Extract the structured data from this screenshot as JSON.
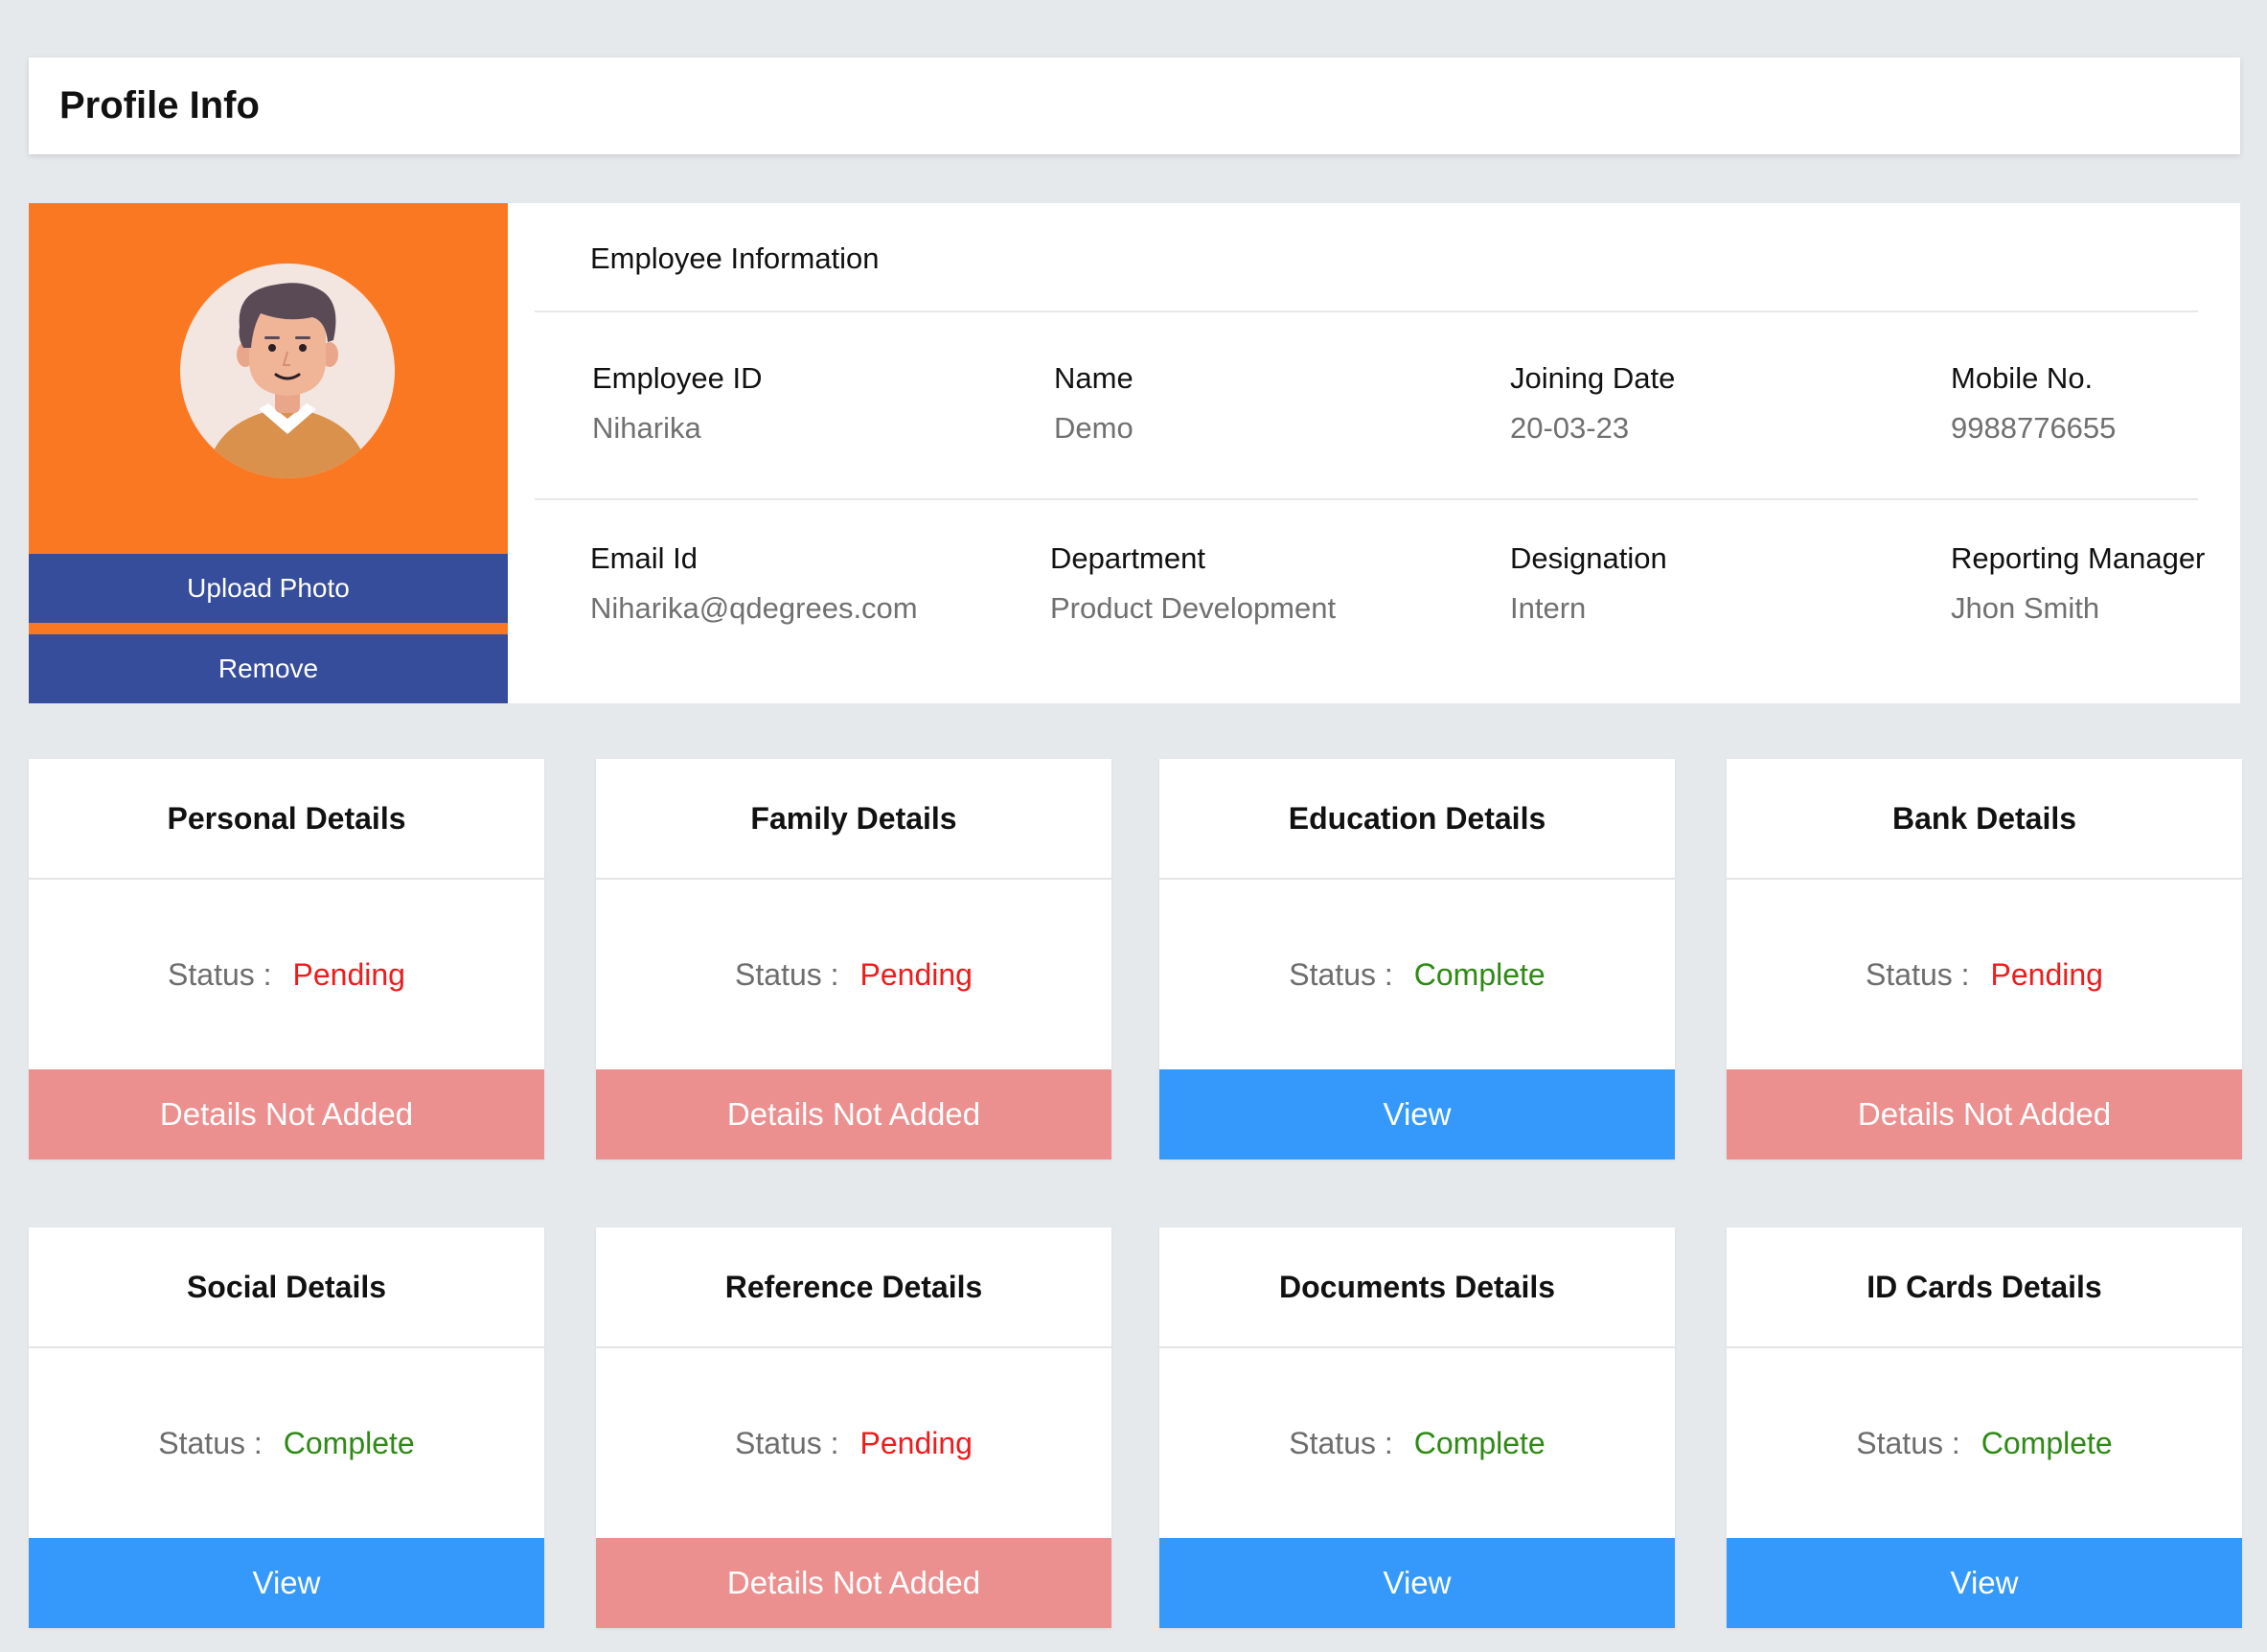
{
  "header": {
    "title": "Profile Info"
  },
  "profile": {
    "upload_label": "Upload Photo",
    "remove_label": "Remove",
    "colors": {
      "photo_bg": "#fb7823",
      "button_bg": "#364d9c"
    }
  },
  "employee": {
    "section_title": "Employee Information",
    "fields": [
      {
        "label": "Employee ID",
        "value": "Niharika"
      },
      {
        "label": "Name",
        "value": "Demo"
      },
      {
        "label": "Joining Date",
        "value": "20-03-23"
      },
      {
        "label": "Mobile No.",
        "value": "9988776655"
      },
      {
        "label": "Email Id",
        "value": "Niharika@qdegrees.com"
      },
      {
        "label": "Department",
        "value": "Product Development"
      },
      {
        "label": "Designation",
        "value": "Intern"
      },
      {
        "label": "Reporting Manager",
        "value": "Jhon Smith"
      }
    ]
  },
  "status_label": "Status :",
  "colors": {
    "pending": "#ee1c1c",
    "complete": "#2e8a15",
    "not_added_bg": "#ec8f8f",
    "view_bg": "#3499fb"
  },
  "cards": [
    {
      "title": "Personal Details",
      "status": "Pending",
      "action": "Details Not Added"
    },
    {
      "title": "Family Details",
      "status": "Pending",
      "action": "Details Not Added"
    },
    {
      "title": "Education Details",
      "status": "Complete",
      "action": "View"
    },
    {
      "title": "Bank Details",
      "status": "Pending",
      "action": "Details Not Added"
    },
    {
      "title": "Social Details",
      "status": "Complete",
      "action": "View"
    },
    {
      "title": "Reference Details",
      "status": "Pending",
      "action": "Details Not Added"
    },
    {
      "title": "Documents Details",
      "status": "Complete",
      "action": "View"
    },
    {
      "title": "ID Cards Details",
      "status": "Complete",
      "action": "View"
    }
  ]
}
